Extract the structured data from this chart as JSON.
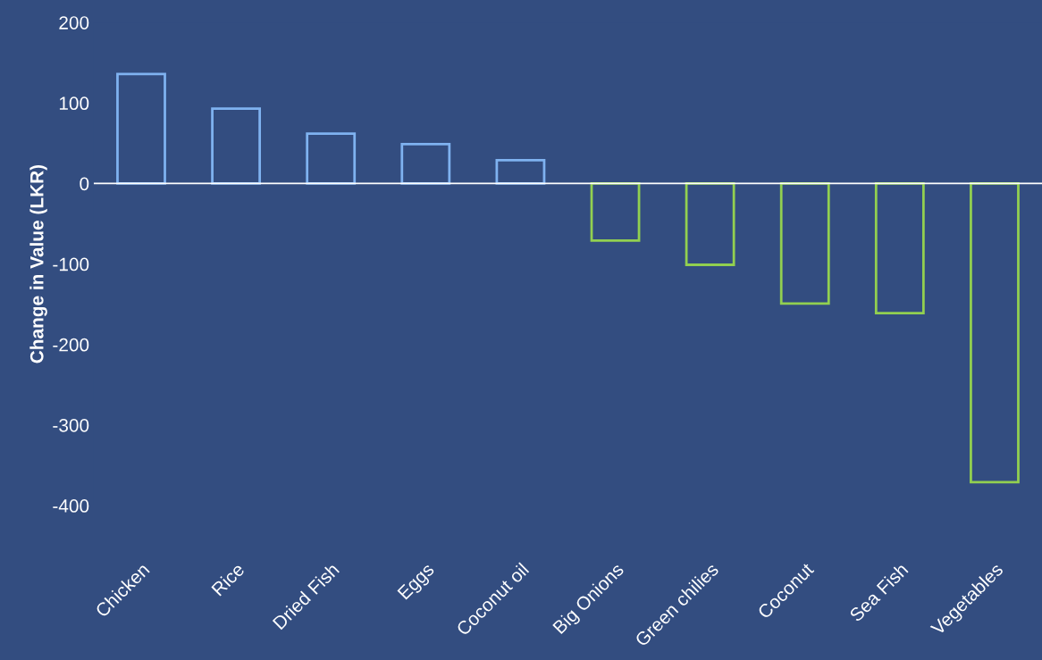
{
  "chart_data": {
    "type": "bar",
    "ylabel": "Change in Value (LKR)",
    "categories": [
      "Chicken",
      "Rice",
      "Dried Fish",
      "Eggs",
      "Coconut oil",
      "Big Onions",
      "Green chilies",
      "Coconut",
      "Sea Fish",
      "Vegetables"
    ],
    "values": [
      136,
      93,
      62,
      49,
      29,
      -71,
      -101,
      -149,
      -161,
      -371
    ],
    "colors": [
      "#7fb2f0",
      "#7fb2f0",
      "#7fb2f0",
      "#7fb2f0",
      "#7fb2f0",
      "#92d050",
      "#92d050",
      "#92d050",
      "#92d050",
      "#92d050"
    ],
    "ylim": [
      -400,
      200
    ],
    "yticks": [
      -400,
      -300,
      -200,
      -100,
      0,
      100,
      200
    ],
    "grid": false,
    "ref_lines": [
      {
        "axis": "y",
        "value": 0,
        "color": "#ffffff"
      }
    ],
    "legend": false
  }
}
